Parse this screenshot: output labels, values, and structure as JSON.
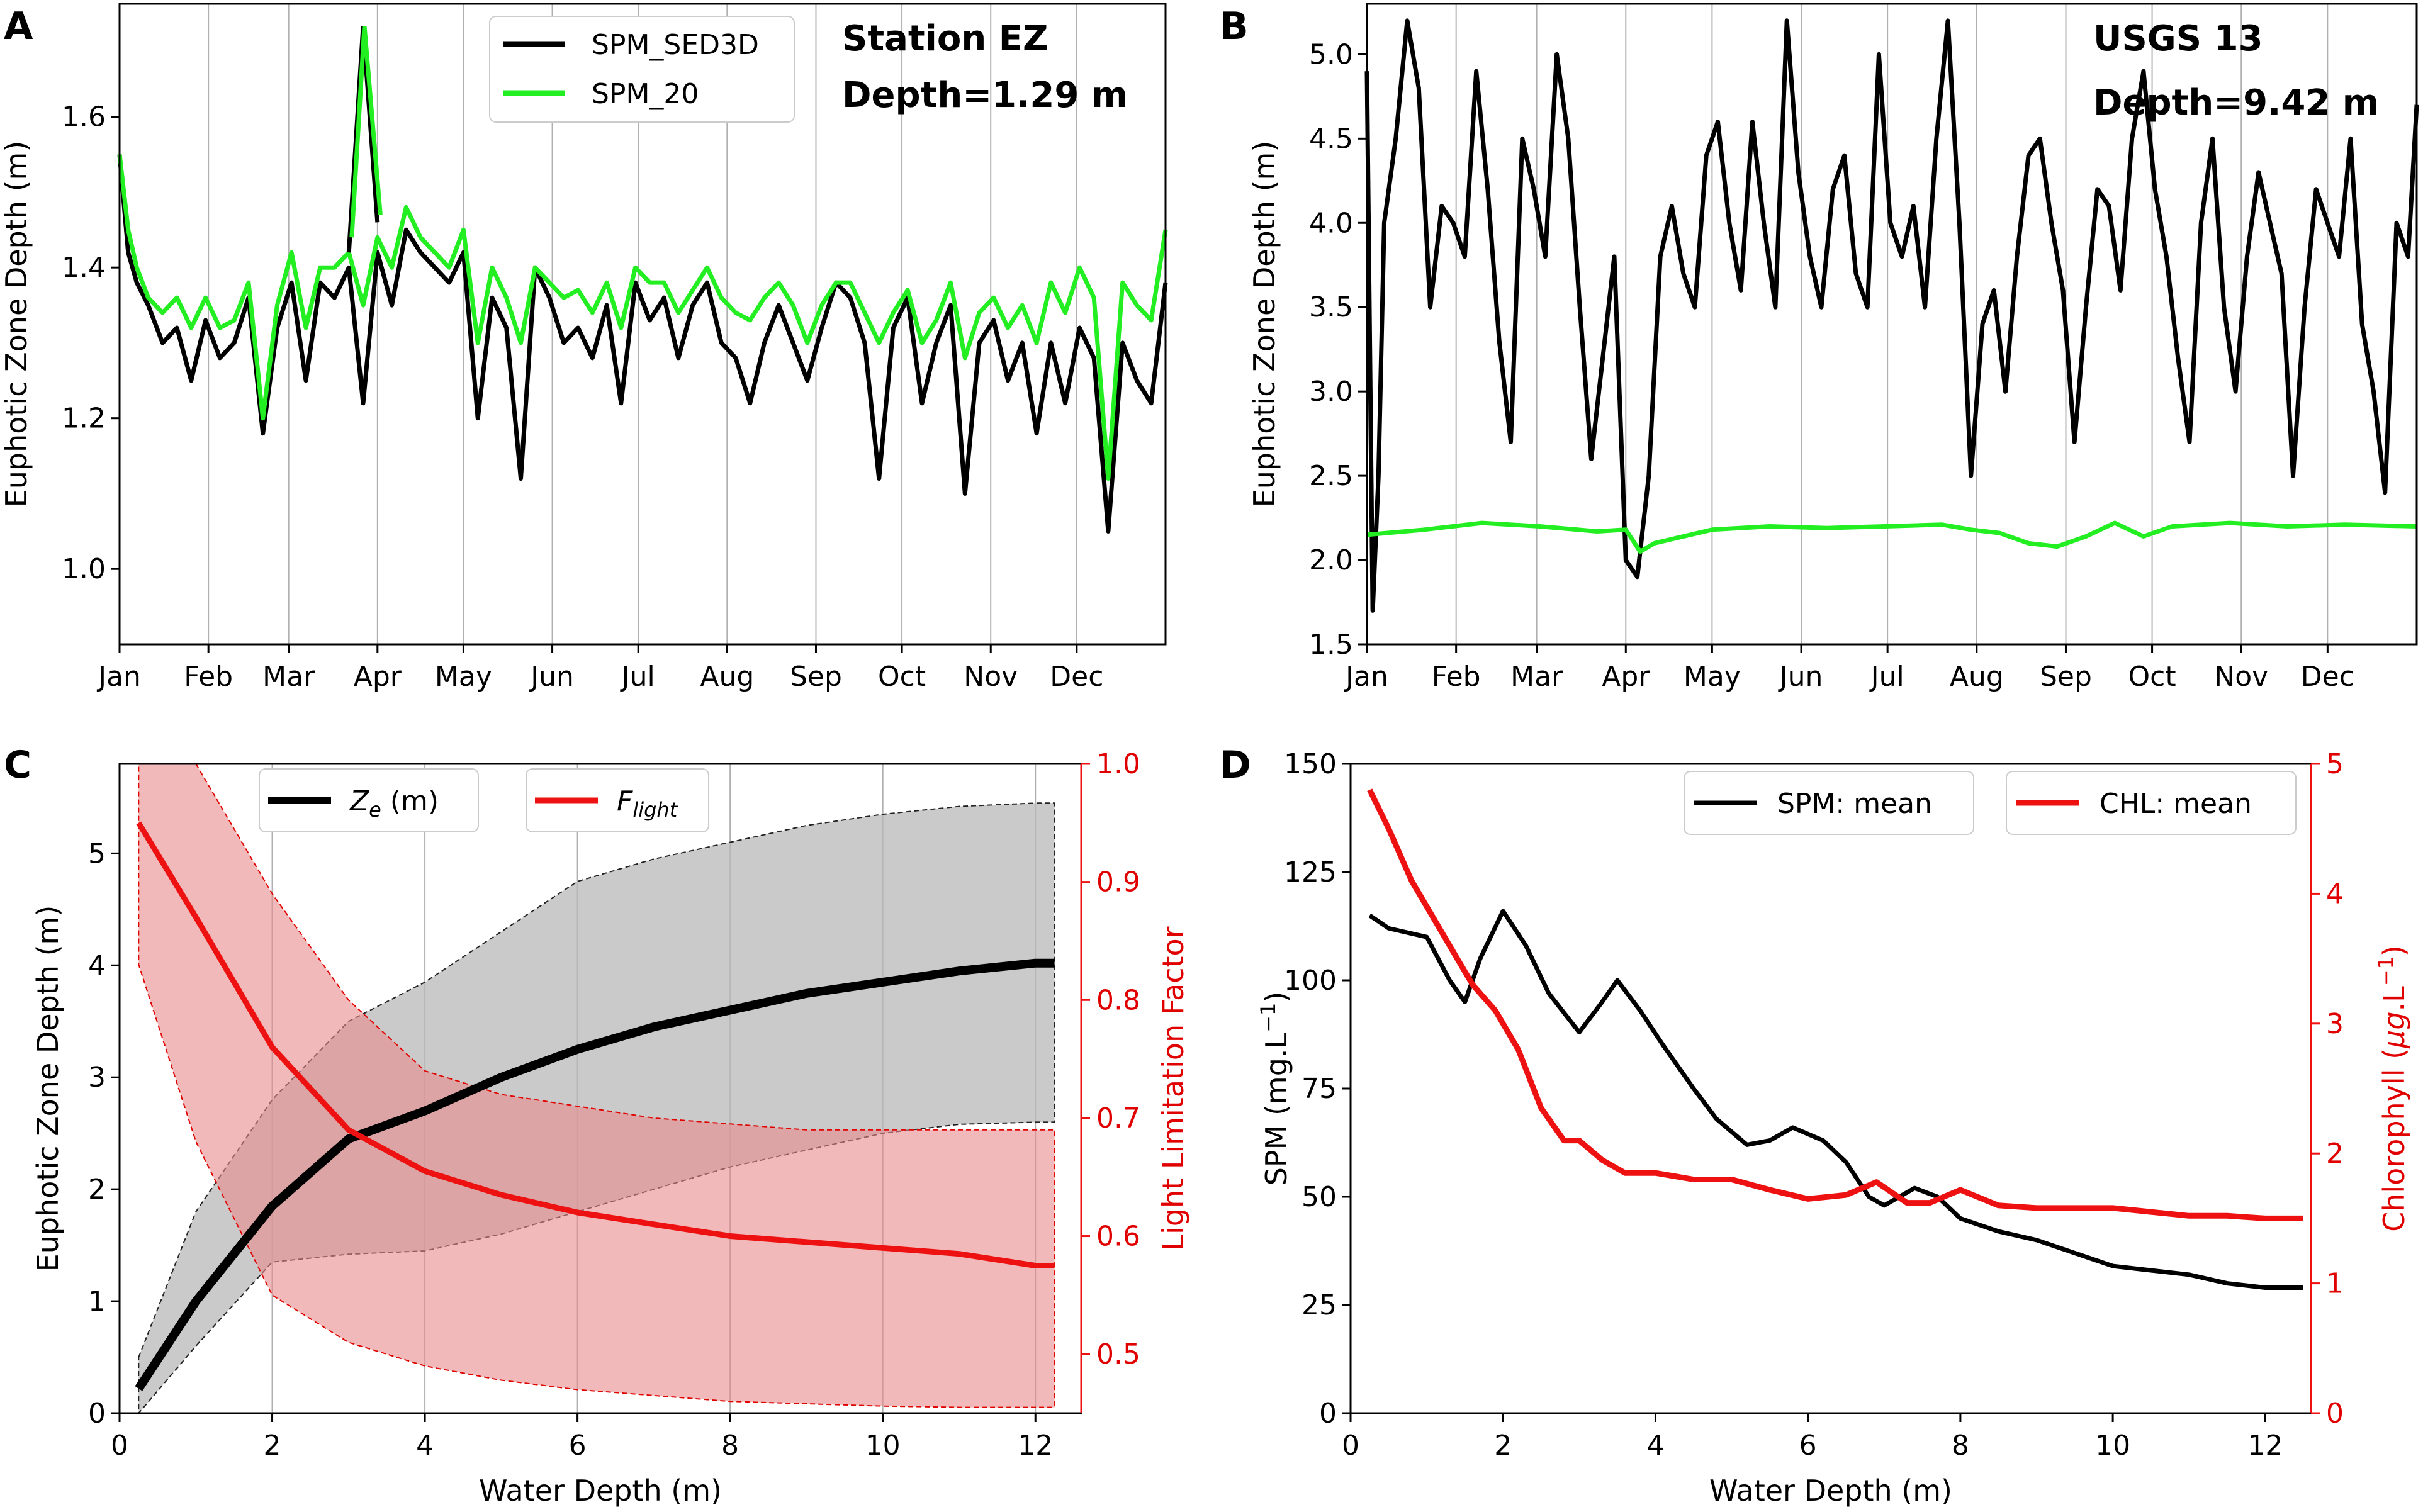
{
  "panels": {
    "A": {
      "label": "A",
      "station": "Station EZ",
      "depth_text": "Depth=1.29 m",
      "ylabel": "Euphotic Zone Depth (m)",
      "yticks": [
        "1.0",
        "1.2",
        "1.4",
        "1.6"
      ],
      "xticks": [
        "Jan",
        "Feb",
        "Mar",
        "Apr",
        "May",
        "Jun",
        "Jul",
        "Aug",
        "Sep",
        "Oct",
        "Nov",
        "Dec"
      ],
      "legend": [
        "SPM_SED3D",
        "SPM_20"
      ]
    },
    "B": {
      "label": "B",
      "station": "USGS 13",
      "depth_text": "Depth=9.42 m",
      "ylabel": "Euphotic Zone Depth (m)",
      "yticks": [
        "1.5",
        "2.0",
        "2.5",
        "3.0",
        "3.5",
        "4.0",
        "4.5",
        "5.0"
      ],
      "xticks": [
        "Jan",
        "Feb",
        "Mar",
        "Apr",
        "May",
        "Jun",
        "Jul",
        "Aug",
        "Sep",
        "Oct",
        "Nov",
        "Dec"
      ]
    },
    "C": {
      "label": "C",
      "ylabel": "Euphotic Zone Depth (m)",
      "ylabel_right": "Light Limitation Factor",
      "xlabel": "Water Depth (m)",
      "yticks": [
        "0",
        "1",
        "2",
        "3",
        "4",
        "5"
      ],
      "yticks_right": [
        "0.5",
        "0.6",
        "0.7",
        "0.8",
        "0.9",
        "1.0"
      ],
      "xticks": [
        "0",
        "2",
        "4",
        "6",
        "8",
        "10",
        "12"
      ],
      "legend_ze_base": "Z",
      "legend_ze_sub": "e",
      "legend_ze_unit": " (m)",
      "legend_fl_base": "F",
      "legend_fl_sub": "light"
    },
    "D": {
      "label": "D",
      "ylabel": "SPM (mg.L",
      "ylabel_sup": "−1",
      "ylabel_close": ")",
      "ylabel_right_a": "Chlorophyll (",
      "ylabel_right_mu": "μg",
      "ylabel_right_b": ".L",
      "ylabel_right_sup": "−1",
      "ylabel_right_close": ")",
      "xlabel": "Water Depth (m)",
      "yticks": [
        "0",
        "25",
        "50",
        "75",
        "100",
        "125",
        "150"
      ],
      "yticks_right": [
        "0",
        "1",
        "2",
        "3",
        "4",
        "5"
      ],
      "xticks": [
        "0",
        "2",
        "4",
        "6",
        "8",
        "10",
        "12"
      ],
      "legend": [
        "SPM: mean",
        "CHL: mean"
      ]
    }
  },
  "colors": {
    "black": "#000000",
    "green": "#22ee22",
    "red": "#ee1111",
    "redfill": "#e88a8a",
    "grayfill": "#b8b8b8"
  },
  "chart_data": [
    {
      "type": "line",
      "panel": "A",
      "title": "Station EZ Depth=1.29 m",
      "ylabel": "Euphotic Zone Depth (m)",
      "ylim": [
        0.9,
        1.75
      ],
      "xlim": [
        0,
        365
      ],
      "series": [
        {
          "name": "SPM_SED3D",
          "x": [
            0,
            3,
            6,
            10,
            15,
            20,
            25,
            30,
            35,
            40,
            45,
            50,
            55,
            60,
            65,
            70,
            75,
            80,
            85,
            90,
            95,
            100,
            105,
            110,
            115,
            120,
            125,
            130,
            135,
            140,
            145,
            150,
            155,
            160,
            165,
            170,
            175,
            180,
            185,
            190,
            195,
            200,
            205,
            210,
            215,
            220,
            225,
            230,
            235,
            240,
            245,
            250,
            255,
            260,
            265,
            270,
            275,
            280,
            285,
            290,
            295,
            300,
            305,
            310,
            315,
            320,
            325,
            330,
            335,
            340,
            345,
            350,
            355,
            360,
            365
          ],
          "values": [
            1.55,
            1.42,
            1.38,
            1.35,
            1.3,
            1.32,
            1.25,
            1.33,
            1.28,
            1.3,
            1.36,
            1.18,
            1.32,
            1.38,
            1.25,
            1.38,
            1.36,
            1.4,
            1.22,
            1.42,
            1.35,
            1.45,
            1.42,
            1.4,
            1.38,
            1.42,
            1.2,
            1.36,
            1.32,
            1.12,
            1.4,
            1.36,
            1.3,
            1.32,
            1.28,
            1.35,
            1.22,
            1.38,
            1.33,
            1.36,
            1.28,
            1.35,
            1.38,
            1.3,
            1.28,
            1.22,
            1.3,
            1.35,
            1.3,
            1.25,
            1.32,
            1.38,
            1.36,
            1.3,
            1.12,
            1.32,
            1.36,
            1.22,
            1.3,
            1.35,
            1.1,
            1.3,
            1.33,
            1.25,
            1.3,
            1.18,
            1.3,
            1.22,
            1.32,
            1.28,
            1.05,
            1.3,
            1.25,
            1.22,
            1.38
          ]
        },
        {
          "name": "SPM_20",
          "x": [
            0,
            3,
            6,
            10,
            15,
            20,
            25,
            30,
            35,
            40,
            45,
            50,
            55,
            60,
            65,
            70,
            75,
            80,
            85,
            90,
            95,
            100,
            105,
            110,
            115,
            120,
            125,
            130,
            135,
            140,
            145,
            150,
            155,
            160,
            165,
            170,
            175,
            180,
            185,
            190,
            195,
            200,
            205,
            210,
            215,
            220,
            225,
            230,
            235,
            240,
            245,
            250,
            255,
            260,
            265,
            270,
            275,
            280,
            285,
            290,
            295,
            300,
            305,
            310,
            315,
            320,
            325,
            330,
            335,
            340,
            345,
            350,
            355,
            360,
            365
          ],
          "values": [
            1.55,
            1.45,
            1.4,
            1.36,
            1.34,
            1.36,
            1.32,
            1.36,
            1.32,
            1.33,
            1.38,
            1.2,
            1.35,
            1.42,
            1.32,
            1.4,
            1.4,
            1.42,
            1.35,
            1.44,
            1.4,
            1.48,
            1.44,
            1.42,
            1.4,
            1.45,
            1.3,
            1.4,
            1.36,
            1.3,
            1.4,
            1.38,
            1.36,
            1.37,
            1.34,
            1.38,
            1.32,
            1.4,
            1.38,
            1.38,
            1.34,
            1.37,
            1.4,
            1.36,
            1.34,
            1.33,
            1.36,
            1.38,
            1.35,
            1.3,
            1.35,
            1.38,
            1.38,
            1.34,
            1.3,
            1.34,
            1.37,
            1.3,
            1.33,
            1.38,
            1.28,
            1.34,
            1.36,
            1.32,
            1.35,
            1.3,
            1.38,
            1.34,
            1.4,
            1.36,
            1.12,
            1.38,
            1.35,
            1.33,
            1.45
          ]
        }
      ],
      "peak": {
        "x": 85,
        "values": [
          1.72,
          1.72
        ]
      }
    },
    {
      "type": "line",
      "panel": "B",
      "title": "USGS 13 Depth=9.42 m",
      "ylabel": "Euphotic Zone Depth (m)",
      "ylim": [
        1.5,
        5.3
      ],
      "xlim": [
        0,
        365
      ],
      "series": [
        {
          "name": "SPM_SED3D",
          "x": [
            0,
            2,
            4,
            6,
            10,
            14,
            18,
            22,
            26,
            30,
            34,
            38,
            42,
            46,
            50,
            54,
            58,
            62,
            66,
            70,
            74,
            78,
            82,
            86,
            90,
            94,
            98,
            102,
            106,
            110,
            114,
            118,
            122,
            126,
            130,
            134,
            138,
            142,
            146,
            150,
            154,
            158,
            162,
            166,
            170,
            174,
            178,
            182,
            186,
            190,
            194,
            198,
            202,
            206,
            210,
            214,
            218,
            222,
            226,
            230,
            234,
            238,
            242,
            246,
            250,
            254,
            258,
            262,
            266,
            270,
            274,
            278,
            282,
            286,
            290,
            294,
            298,
            302,
            306,
            310,
            314,
            318,
            322,
            326,
            330,
            334,
            338,
            342,
            346,
            350,
            354,
            358,
            362,
            365
          ],
          "values": [
            4.9,
            1.7,
            2.5,
            4.0,
            4.5,
            5.2,
            4.8,
            3.5,
            4.1,
            4.0,
            3.8,
            4.9,
            4.2,
            3.3,
            2.7,
            4.5,
            4.2,
            3.8,
            5.0,
            4.5,
            3.5,
            2.6,
            3.2,
            3.8,
            2.0,
            1.9,
            2.5,
            3.8,
            4.1,
            3.7,
            3.5,
            4.4,
            4.6,
            4.0,
            3.6,
            4.6,
            4.0,
            3.5,
            5.2,
            4.3,
            3.8,
            3.5,
            4.2,
            4.4,
            3.7,
            3.5,
            5.0,
            4.0,
            3.8,
            4.1,
            3.5,
            4.5,
            5.2,
            4.0,
            2.5,
            3.4,
            3.6,
            3.0,
            3.8,
            4.4,
            4.5,
            4.0,
            3.6,
            2.7,
            3.5,
            4.2,
            4.1,
            3.6,
            4.5,
            4.9,
            4.2,
            3.8,
            3.2,
            2.7,
            4.0,
            4.5,
            3.5,
            3.0,
            3.8,
            4.3,
            4.0,
            3.7,
            2.5,
            3.5,
            4.2,
            4.0,
            3.8,
            4.5,
            3.4,
            3.0,
            2.4,
            4.0,
            3.8,
            4.7
          ]
        },
        {
          "name": "SPM_20",
          "x": [
            0,
            20,
            40,
            60,
            80,
            90,
            95,
            100,
            120,
            140,
            160,
            180,
            200,
            210,
            220,
            230,
            240,
            250,
            260,
            270,
            280,
            300,
            320,
            340,
            365
          ],
          "values": [
            2.15,
            2.18,
            2.22,
            2.2,
            2.17,
            2.18,
            2.05,
            2.1,
            2.18,
            2.2,
            2.19,
            2.2,
            2.21,
            2.18,
            2.16,
            2.1,
            2.08,
            2.14,
            2.22,
            2.14,
            2.2,
            2.22,
            2.2,
            2.21,
            2.2
          ]
        }
      ]
    },
    {
      "type": "line",
      "panel": "C",
      "xlabel": "Water Depth (m)",
      "ylabel": "Euphotic Zone Depth (m)",
      "ylabel_right": "Light Limitation Factor",
      "xlim": [
        0,
        12.6
      ],
      "ylim": [
        0,
        5.8
      ],
      "ylim_right": [
        0.45,
        1.0
      ],
      "x": [
        0.25,
        1,
        2,
        3,
        4,
        5,
        6,
        7,
        8,
        9,
        10,
        11,
        12,
        12.25
      ],
      "series": [
        {
          "name": "Ze (m)",
          "axis": "left",
          "values": [
            0.22,
            1.0,
            1.85,
            2.45,
            2.7,
            3.0,
            3.25,
            3.45,
            3.6,
            3.75,
            3.85,
            3.95,
            4.02,
            4.02
          ]
        },
        {
          "name": "Ze lower",
          "axis": "left",
          "values": [
            0.0,
            0.6,
            1.35,
            1.42,
            1.45,
            1.6,
            1.8,
            2.0,
            2.2,
            2.35,
            2.5,
            2.58,
            2.6,
            2.6
          ]
        },
        {
          "name": "Ze upper",
          "axis": "left",
          "values": [
            0.5,
            1.8,
            2.8,
            3.5,
            3.85,
            4.3,
            4.75,
            4.95,
            5.1,
            5.25,
            5.35,
            5.42,
            5.45,
            5.45
          ]
        },
        {
          "name": "Flight",
          "axis": "right",
          "values": [
            0.95,
            0.87,
            0.76,
            0.69,
            0.655,
            0.635,
            0.62,
            0.61,
            0.6,
            0.595,
            0.59,
            0.585,
            0.575,
            0.575
          ]
        },
        {
          "name": "Flight lower",
          "axis": "right",
          "values": [
            0.83,
            0.68,
            0.55,
            0.51,
            0.49,
            0.478,
            0.47,
            0.465,
            0.46,
            0.458,
            0.456,
            0.455,
            0.455,
            0.455
          ]
        },
        {
          "name": "Flight upper",
          "axis": "right",
          "values": [
            1.0,
            1.0,
            0.89,
            0.8,
            0.74,
            0.72,
            0.71,
            0.7,
            0.695,
            0.69,
            0.69,
            0.69,
            0.69,
            0.69
          ]
        }
      ]
    },
    {
      "type": "line",
      "panel": "D",
      "xlabel": "Water Depth (m)",
      "ylabel": "SPM (mg.L−1)",
      "ylabel_right": "Chlorophyll (μg.L−1)",
      "xlim": [
        0,
        12.6
      ],
      "ylim": [
        0,
        150
      ],
      "ylim_right": [
        0,
        5
      ],
      "series": [
        {
          "name": "SPM: mean",
          "axis": "left",
          "x": [
            0.25,
            0.5,
            1.0,
            1.3,
            1.5,
            1.7,
            2.0,
            2.3,
            2.6,
            3.0,
            3.3,
            3.5,
            3.8,
            4.1,
            4.5,
            4.8,
            5.2,
            5.5,
            5.8,
            6.2,
            6.5,
            6.8,
            7.0,
            7.4,
            7.7,
            8.0,
            8.5,
            9.0,
            9.5,
            10,
            10.5,
            11,
            11.5,
            12,
            12.5
          ],
          "values": [
            115,
            112,
            110,
            100,
            95,
            105,
            116,
            108,
            97,
            88,
            95,
            100,
            93,
            85,
            75,
            68,
            62,
            63,
            66,
            63,
            58,
            50,
            48,
            52,
            50,
            45,
            42,
            40,
            37,
            34,
            33,
            32,
            30,
            29,
            29
          ]
        },
        {
          "name": "CHL: mean",
          "axis": "right",
          "x": [
            0.25,
            0.5,
            0.8,
            1.0,
            1.3,
            1.6,
            1.9,
            2.2,
            2.5,
            2.8,
            3.0,
            3.3,
            3.6,
            4.0,
            4.5,
            5.0,
            5.5,
            6.0,
            6.5,
            6.9,
            7.3,
            7.6,
            8.0,
            8.5,
            9.0,
            9.5,
            10,
            10.5,
            11,
            11.5,
            12,
            12.5
          ],
          "values": [
            4.8,
            4.5,
            4.1,
            3.9,
            3.6,
            3.3,
            3.1,
            2.8,
            2.35,
            2.1,
            2.1,
            1.95,
            1.85,
            1.85,
            1.8,
            1.8,
            1.72,
            1.65,
            1.68,
            1.78,
            1.62,
            1.62,
            1.72,
            1.6,
            1.58,
            1.58,
            1.58,
            1.55,
            1.52,
            1.52,
            1.5,
            1.5
          ]
        }
      ]
    }
  ]
}
